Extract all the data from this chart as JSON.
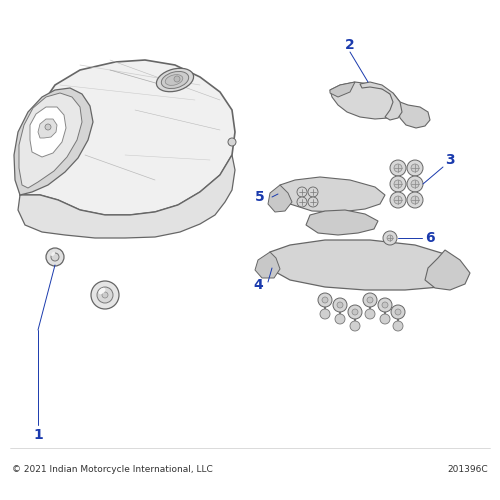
{
  "bg_color": "#ffffff",
  "label_color": "#1a3aad",
  "text_color": "#333333",
  "footer_left": "© 2021 Indian Motorcycle International, LLC",
  "footer_right": "201396C",
  "fig_width": 5.0,
  "fig_height": 5.0,
  "dpi": 100
}
